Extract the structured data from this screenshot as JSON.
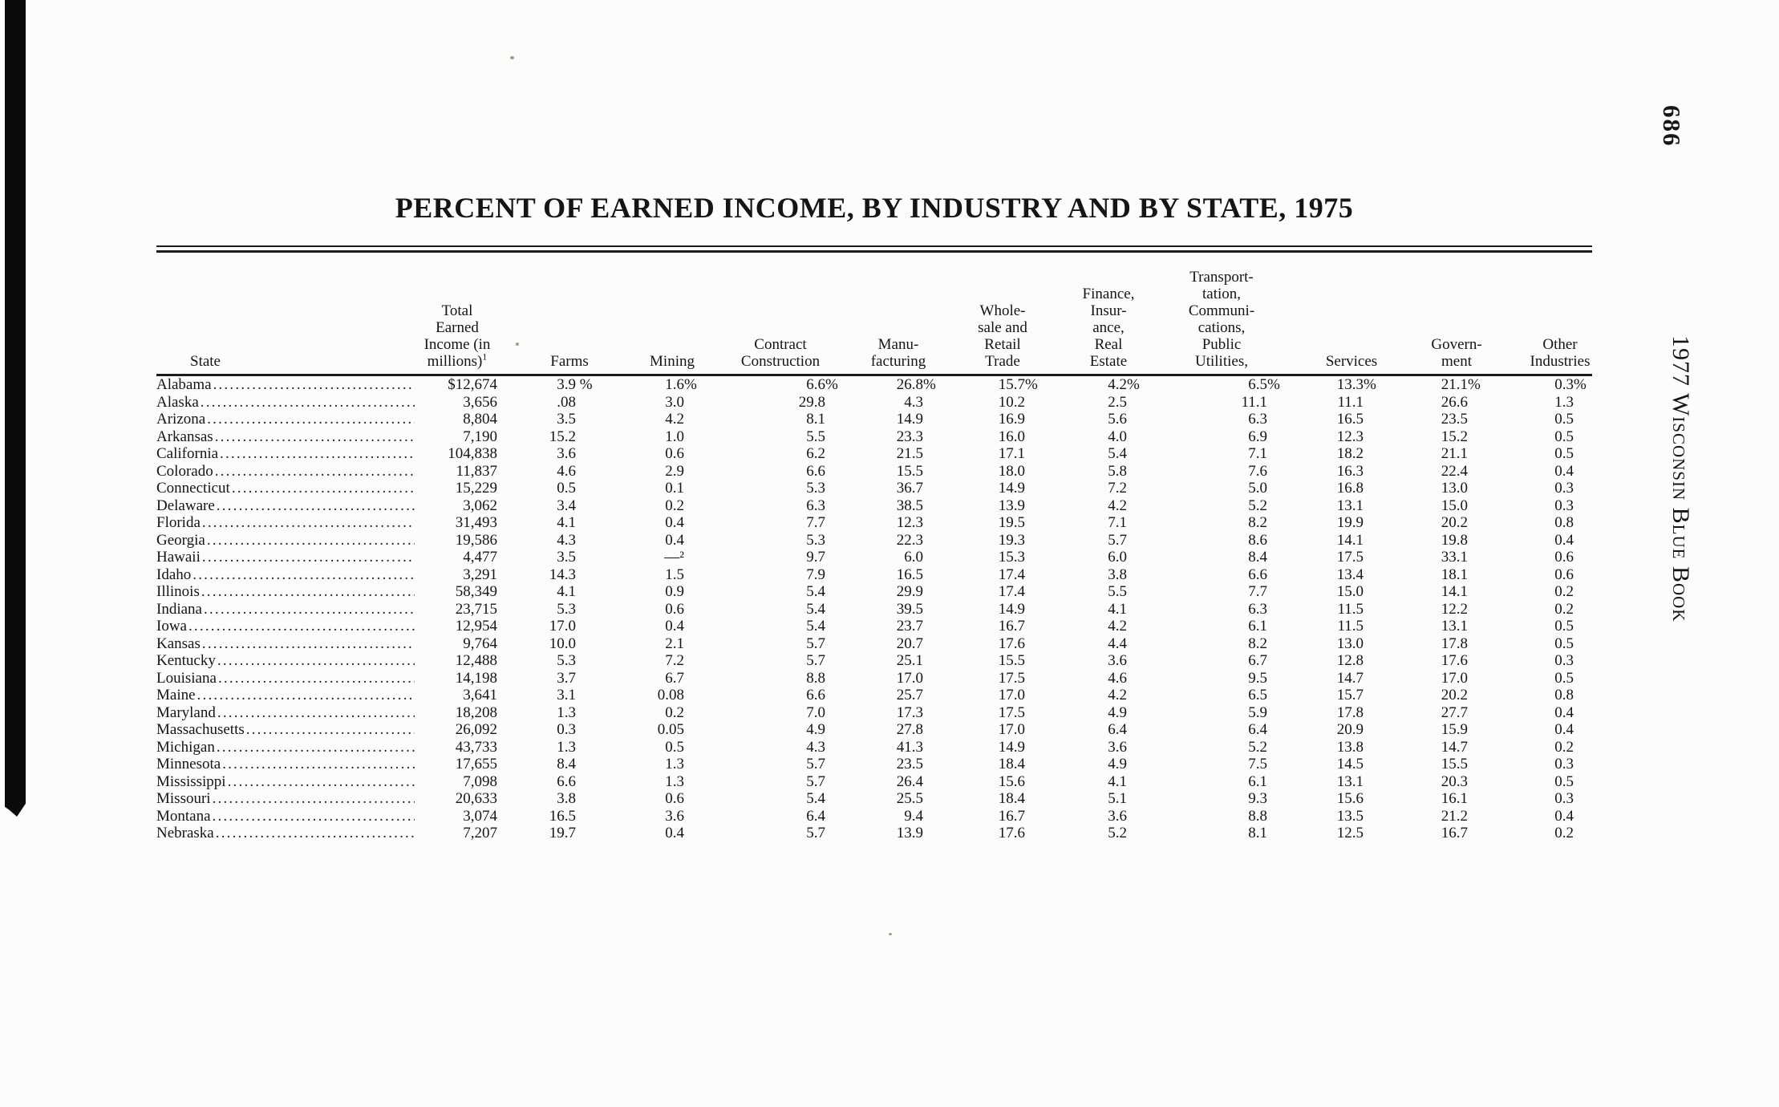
{
  "page": {
    "title": "PERCENT OF EARNED INCOME, BY INDUSTRY AND BY STATE, 1975",
    "margin": {
      "page_number": "686",
      "book_title": "1977 Wisconsin Blue Book"
    }
  },
  "table": {
    "columns": [
      {
        "id": "state",
        "lines": [
          "State"
        ]
      },
      {
        "id": "income",
        "lines": [
          "Total",
          "Earned",
          "Income (in",
          "millions)¹"
        ]
      },
      {
        "id": "farms",
        "lines": [
          "Farms"
        ]
      },
      {
        "id": "mining",
        "lines": [
          "Mining"
        ]
      },
      {
        "id": "contract-construction",
        "lines": [
          "Contract",
          "Construction"
        ]
      },
      {
        "id": "manufacturing",
        "lines": [
          "Manu-",
          "facturing"
        ]
      },
      {
        "id": "wholesale-retail",
        "lines": [
          "Whole-",
          "sale and",
          "Retail",
          "Trade"
        ]
      },
      {
        "id": "finance",
        "lines": [
          "Finance,",
          "Insur-",
          "ance,",
          "Real",
          "Estate"
        ]
      },
      {
        "id": "transport",
        "lines": [
          "Transport-",
          "tation,",
          "Communi-",
          "cations,",
          "Public",
          "Utilities,"
        ]
      },
      {
        "id": "services",
        "lines": [
          "Services"
        ]
      },
      {
        "id": "government",
        "lines": [
          "Govern-",
          "ment"
        ]
      },
      {
        "id": "other",
        "lines": [
          "Other",
          "Industries"
        ]
      }
    ],
    "rows": [
      {
        "state": "Alabama",
        "values": [
          "$12,674",
          "3.9 %",
          "1.6%",
          "6.6%",
          "26.8%",
          "15.7%",
          "4.2%",
          "6.5%",
          "13.3%",
          "21.1%",
          "0.3%"
        ]
      },
      {
        "state": "Alaska",
        "values": [
          "3,656",
          ".08",
          "3.0",
          "29.8",
          "4.3",
          "10.2",
          "2.5",
          "11.1",
          "11.1",
          "26.6",
          "1.3"
        ]
      },
      {
        "state": "Arizona",
        "values": [
          "8,804",
          "3.5",
          "4.2",
          "8.1",
          "14.9",
          "16.9",
          "5.6",
          "6.3",
          "16.5",
          "23.5",
          "0.5"
        ]
      },
      {
        "state": "Arkansas",
        "values": [
          "7,190",
          "15.2",
          "1.0",
          "5.5",
          "23.3",
          "16.0",
          "4.0",
          "6.9",
          "12.3",
          "15.2",
          "0.5"
        ]
      },
      {
        "state": "California",
        "values": [
          "104,838",
          "3.6",
          "0.6",
          "6.2",
          "21.5",
          "17.1",
          "5.4",
          "7.1",
          "18.2",
          "21.1",
          "0.5"
        ]
      },
      {
        "state": "Colorado",
        "values": [
          "11,837",
          "4.6",
          "2.9",
          "6.6",
          "15.5",
          "18.0",
          "5.8",
          "7.6",
          "16.3",
          "22.4",
          "0.4"
        ]
      },
      {
        "state": "Connecticut",
        "values": [
          "15,229",
          "0.5",
          "0.1",
          "5.3",
          "36.7",
          "14.9",
          "7.2",
          "5.0",
          "16.8",
          "13.0",
          "0.3"
        ]
      },
      {
        "state": "Delaware",
        "values": [
          "3,062",
          "3.4",
          "0.2",
          "6.3",
          "38.5",
          "13.9",
          "4.2",
          "5.2",
          "13.1",
          "15.0",
          "0.3"
        ]
      },
      {
        "state": "Florida",
        "values": [
          "31,493",
          "4.1",
          "0.4",
          "7.7",
          "12.3",
          "19.5",
          "7.1",
          "8.2",
          "19.9",
          "20.2",
          "0.8"
        ]
      },
      {
        "state": "Georgia",
        "values": [
          "19,586",
          "4.3",
          "0.4",
          "5.3",
          "22.3",
          "19.3",
          "5.7",
          "8.6",
          "14.1",
          "19.8",
          "0.4"
        ]
      },
      {
        "state": "Hawaii",
        "values": [
          "4,477",
          "3.5",
          "—²",
          "9.7",
          "6.0",
          "15.3",
          "6.0",
          "8.4",
          "17.5",
          "33.1",
          "0.6"
        ]
      },
      {
        "state": "Idaho",
        "values": [
          "3,291",
          "14.3",
          "1.5",
          "7.9",
          "16.5",
          "17.4",
          "3.8",
          "6.6",
          "13.4",
          "18.1",
          "0.6"
        ]
      },
      {
        "state": "Illinois",
        "values": [
          "58,349",
          "4.1",
          "0.9",
          "5.4",
          "29.9",
          "17.4",
          "5.5",
          "7.7",
          "15.0",
          "14.1",
          "0.2"
        ]
      },
      {
        "state": "Indiana",
        "values": [
          "23,715",
          "5.3",
          "0.6",
          "5.4",
          "39.5",
          "14.9",
          "4.1",
          "6.3",
          "11.5",
          "12.2",
          "0.2"
        ]
      },
      {
        "state": "Iowa",
        "values": [
          "12,954",
          "17.0",
          "0.4",
          "5.4",
          "23.7",
          "16.7",
          "4.2",
          "6.1",
          "11.5",
          "13.1",
          "0.5"
        ]
      },
      {
        "state": "Kansas",
        "values": [
          "9,764",
          "10.0",
          "2.1",
          "5.7",
          "20.7",
          "17.6",
          "4.4",
          "8.2",
          "13.0",
          "17.8",
          "0.5"
        ]
      },
      {
        "state": "Kentucky",
        "values": [
          "12,488",
          "5.3",
          "7.2",
          "5.7",
          "25.1",
          "15.5",
          "3.6",
          "6.7",
          "12.8",
          "17.6",
          "0.3"
        ]
      },
      {
        "state": "Louisiana",
        "values": [
          "14,198",
          "3.7",
          "6.7",
          "8.8",
          "17.0",
          "17.5",
          "4.6",
          "9.5",
          "14.7",
          "17.0",
          "0.5"
        ]
      },
      {
        "state": "Maine",
        "values": [
          "3,641",
          "3.1",
          "0.08",
          "6.6",
          "25.7",
          "17.0",
          "4.2",
          "6.5",
          "15.7",
          "20.2",
          "0.8"
        ]
      },
      {
        "state": "Maryland",
        "values": [
          "18,208",
          "1.3",
          "0.2",
          "7.0",
          "17.3",
          "17.5",
          "4.9",
          "5.9",
          "17.8",
          "27.7",
          "0.4"
        ]
      },
      {
        "state": "Massachusetts",
        "values": [
          "26,092",
          "0.3",
          "0.05",
          "4.9",
          "27.8",
          "17.0",
          "6.4",
          "6.4",
          "20.9",
          "15.9",
          "0.4"
        ]
      },
      {
        "state": "Michigan",
        "values": [
          "43,733",
          "1.3",
          "0.5",
          "4.3",
          "41.3",
          "14.9",
          "3.6",
          "5.2",
          "13.8",
          "14.7",
          "0.2"
        ]
      },
      {
        "state": "Minnesota",
        "values": [
          "17,655",
          "8.4",
          "1.3",
          "5.7",
          "23.5",
          "18.4",
          "4.9",
          "7.5",
          "14.5",
          "15.5",
          "0.3"
        ]
      },
      {
        "state": "Mississippi",
        "values": [
          "7,098",
          "6.6",
          "1.3",
          "5.7",
          "26.4",
          "15.6",
          "4.1",
          "6.1",
          "13.1",
          "20.3",
          "0.5"
        ]
      },
      {
        "state": "Missouri",
        "values": [
          "20,633",
          "3.8",
          "0.6",
          "5.4",
          "25.5",
          "18.4",
          "5.1",
          "9.3",
          "15.6",
          "16.1",
          "0.3"
        ]
      },
      {
        "state": "Montana",
        "values": [
          "3,074",
          "16.5",
          "3.6",
          "6.4",
          "9.4",
          "16.7",
          "3.6",
          "8.8",
          "13.5",
          "21.2",
          "0.4"
        ]
      },
      {
        "state": "Nebraska",
        "values": [
          "7,207",
          "19.7",
          "0.4",
          "5.7",
          "13.9",
          "17.6",
          "5.2",
          "8.1",
          "12.5",
          "16.7",
          "0.2"
        ]
      }
    ]
  }
}
